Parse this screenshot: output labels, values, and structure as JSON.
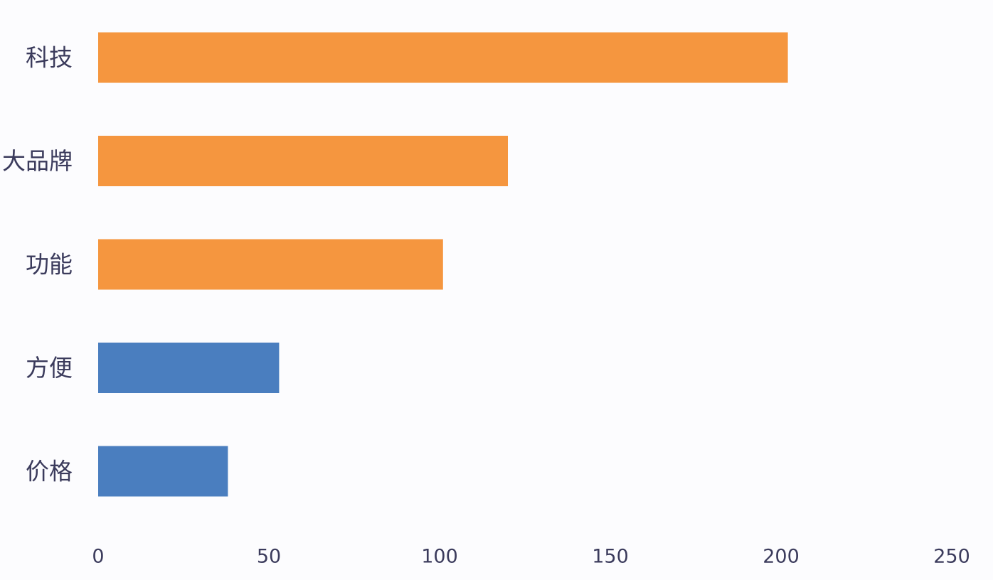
{
  "chart_data": {
    "type": "bar",
    "orientation": "horizontal",
    "categories": [
      "科技",
      "大品牌",
      "功能",
      "方便",
      "价格"
    ],
    "values": [
      202,
      120,
      101,
      53,
      38
    ],
    "bar_colors": [
      "#f5963f",
      "#f5963f",
      "#f5963f",
      "#4a7ebf",
      "#4a7ebf"
    ],
    "xlim": [
      0,
      250
    ],
    "x_ticks": [
      "0",
      "50",
      "100",
      "150",
      "200",
      "250"
    ],
    "title": "",
    "xlabel": "",
    "ylabel": "",
    "grid": false,
    "legend": "none"
  }
}
